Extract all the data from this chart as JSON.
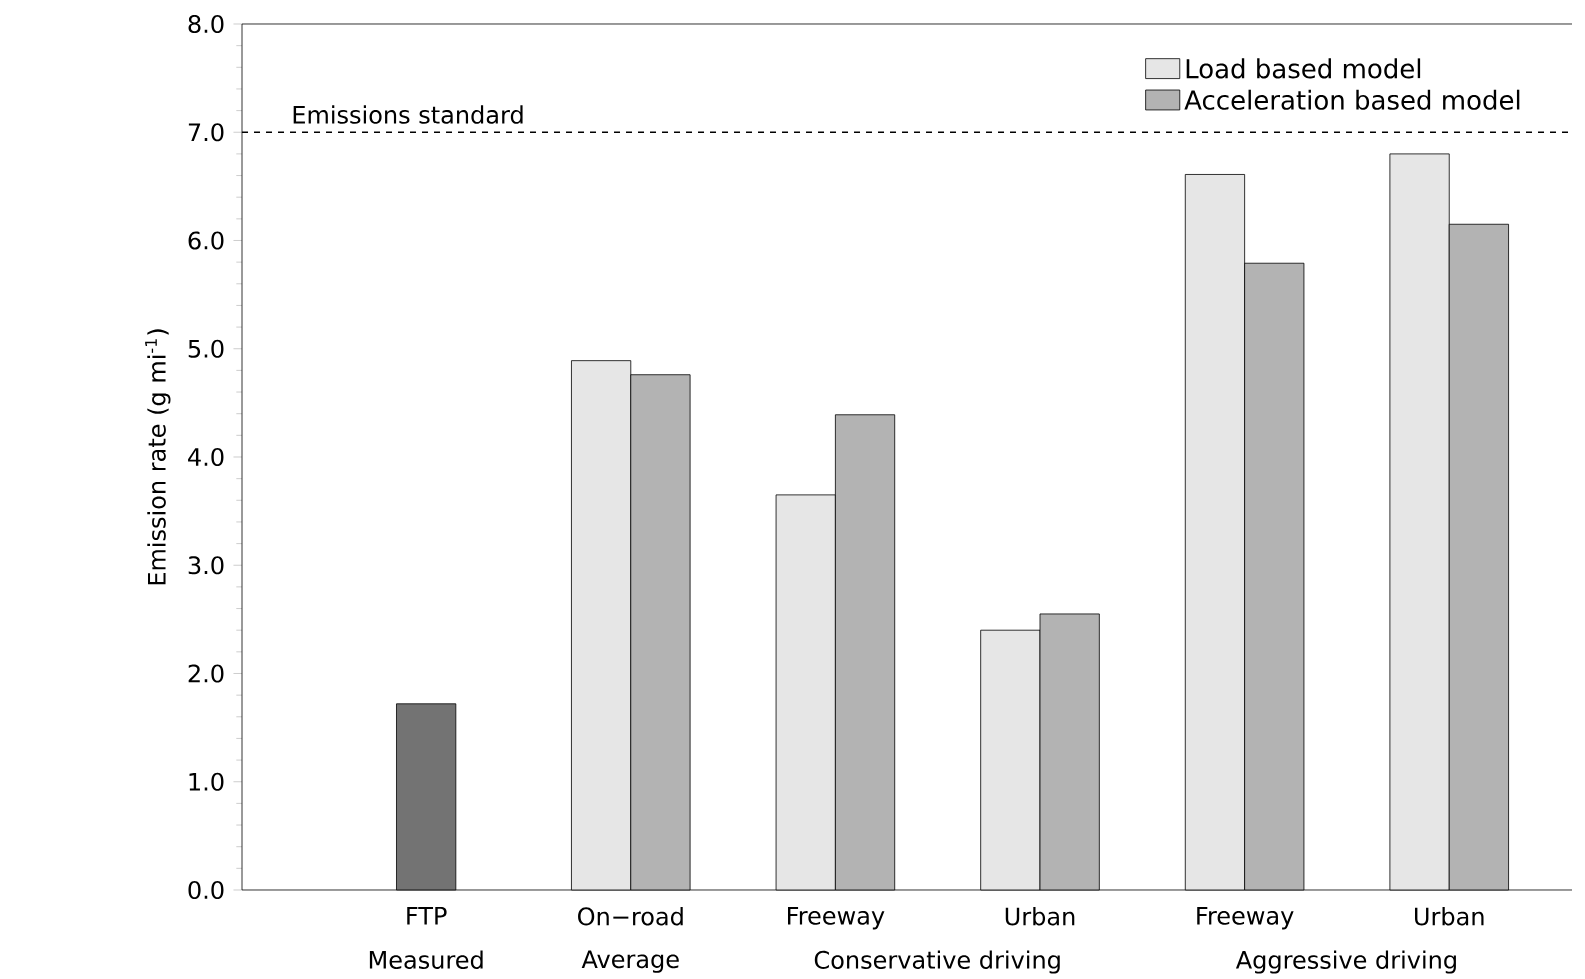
{
  "chart_data": {
    "type": "bar",
    "ylabel": "Emission rate (g mi$^{-1}$)",
    "categories": [
      "FTP",
      "On−road",
      "Freeway",
      "Urban",
      "Freeway",
      "Urban"
    ],
    "series": [
      {
        "name": "Load based model",
        "color": "#e6e6e6",
        "values": [
          null,
          4.89,
          3.65,
          2.4,
          6.61,
          6.8
        ]
      },
      {
        "name": "Acceleration based model",
        "color": "#b3b3b3",
        "values": [
          null,
          4.76,
          4.39,
          2.55,
          5.79,
          6.15
        ]
      },
      {
        "color": "#737373",
        "values": [
          1.72,
          null,
          null,
          null,
          null,
          null
        ]
      }
    ],
    "ylim": [
      0,
      8
    ],
    "yticks": [
      {
        "value": 0,
        "label": "0.0"
      },
      {
        "value": 1,
        "label": "1.0"
      },
      {
        "value": 2,
        "label": "2.0"
      },
      {
        "value": 3,
        "label": "3.0"
      },
      {
        "value": 4,
        "label": "4.0"
      },
      {
        "value": 5,
        "label": "5.0"
      },
      {
        "value": 6,
        "label": "6.0"
      },
      {
        "value": 7,
        "label": "7.0"
      },
      {
        "value": 8,
        "label": "8.0"
      }
    ],
    "ref_lines": [
      {
        "axis": "y",
        "value": 7,
        "label": "Emissions standard",
        "line_style": "dashed"
      }
    ],
    "annotations": [
      "Measured",
      "Average",
      "Conservative driving",
      "Aggressive driving"
    ],
    "legend": "top right",
    "grid": false
  }
}
